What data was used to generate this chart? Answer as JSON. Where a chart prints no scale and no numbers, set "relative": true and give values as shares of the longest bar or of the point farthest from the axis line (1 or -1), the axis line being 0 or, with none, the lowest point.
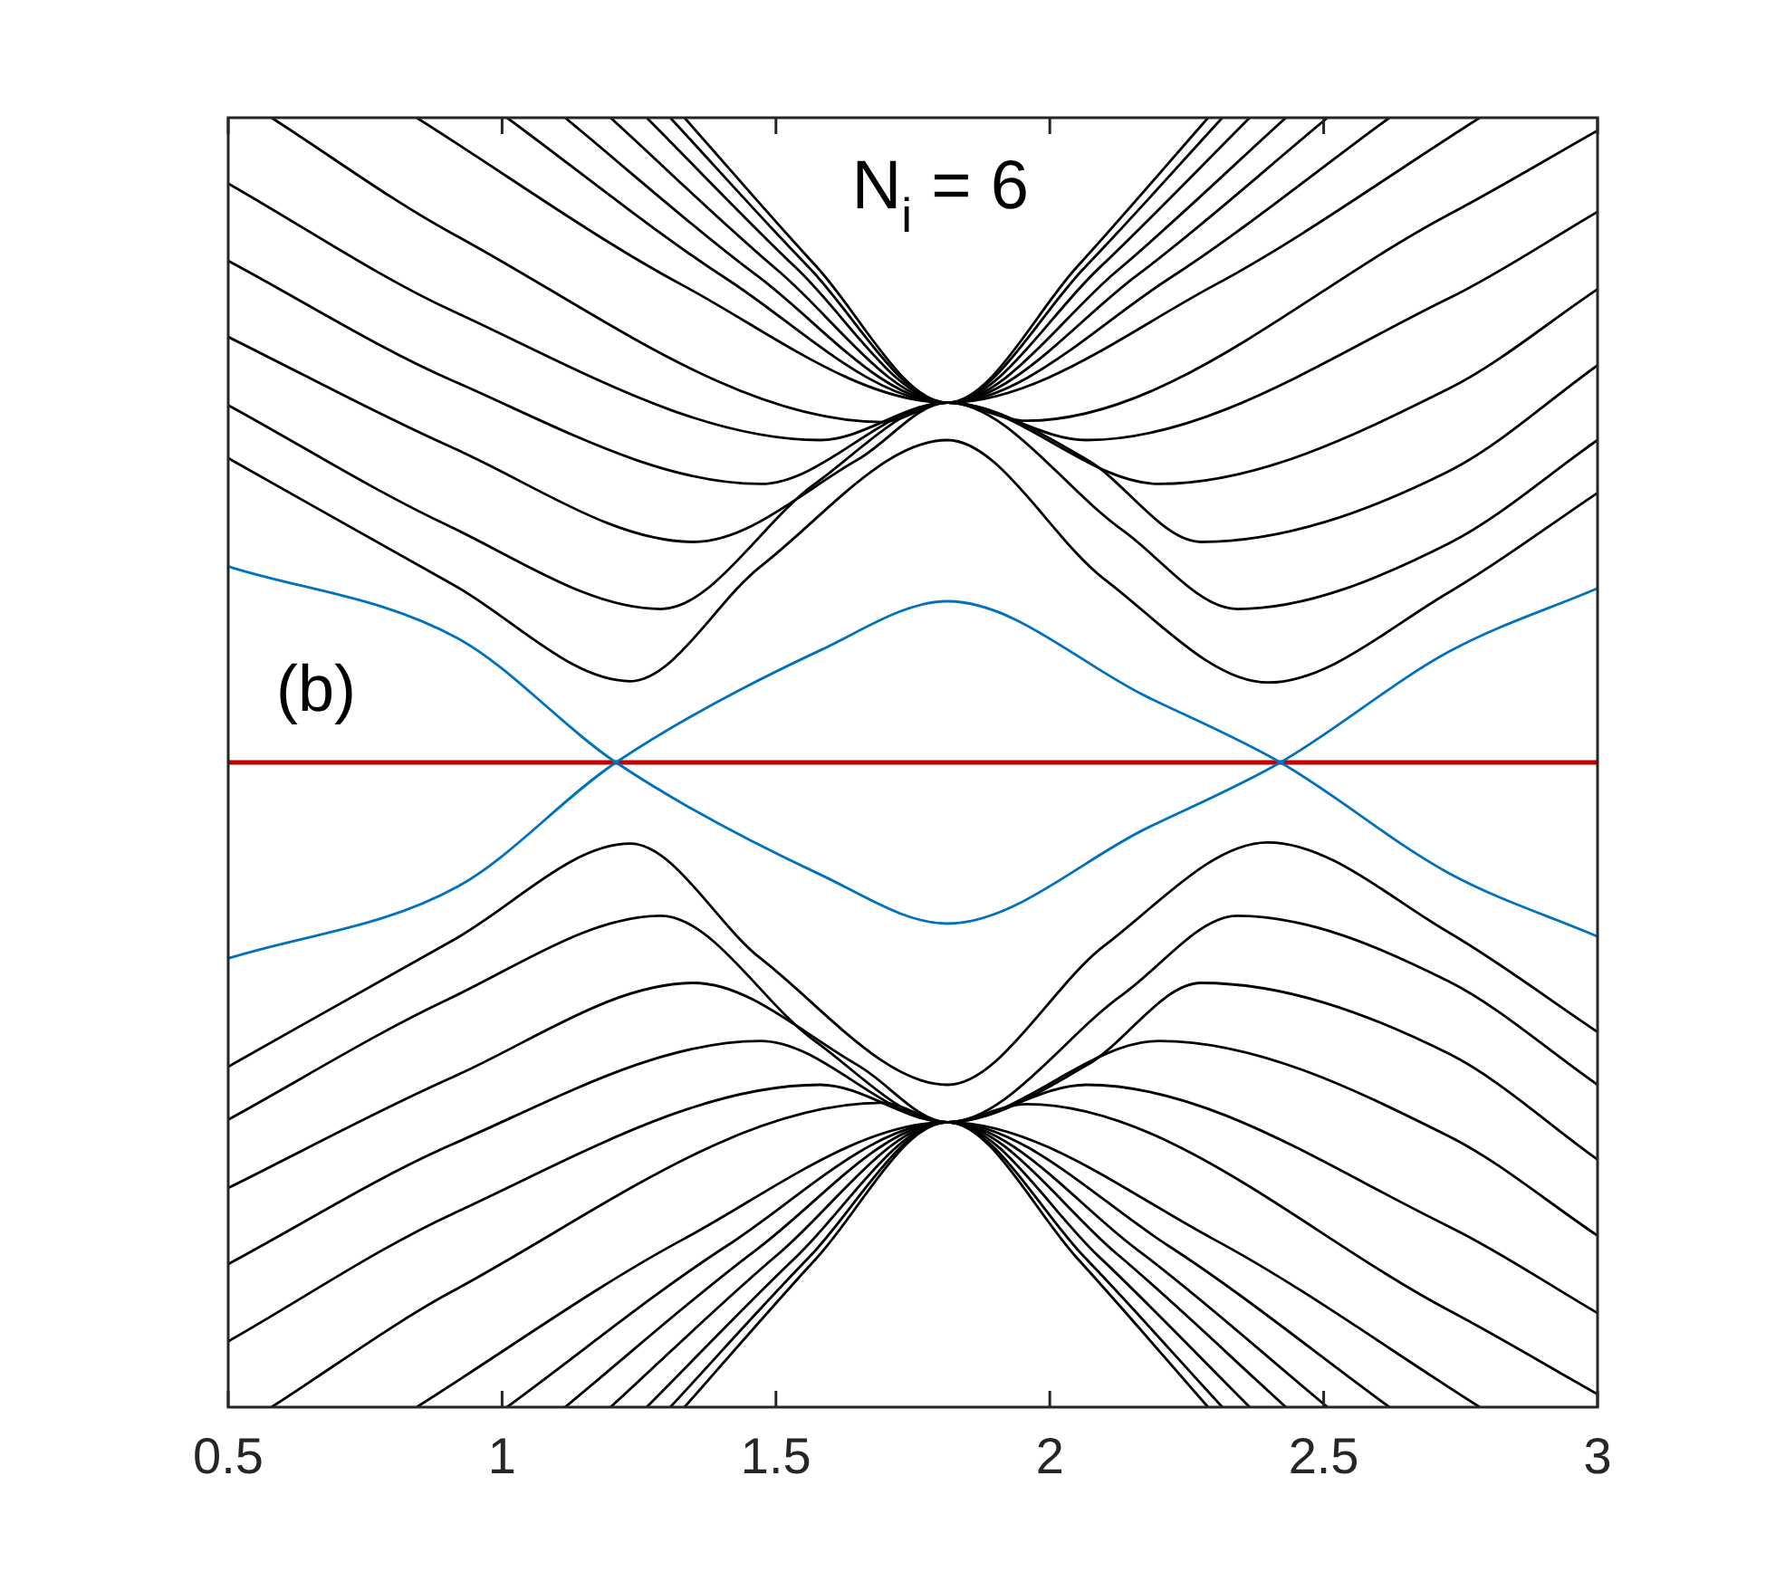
{
  "chart_data": {
    "type": "line",
    "relative": true,
    "xlim": [
      0.5,
      3
    ],
    "xticks": [
      0.5,
      1,
      1.5,
      2,
      2.5,
      3
    ],
    "grid": false,
    "legend": false,
    "marker": "none",
    "line_style": "solid",
    "annotations": [
      "N$_{i}$ = 6",
      "(b)"
    ],
    "series": [
      {
        "color": "#000000",
        "x": [
          0.5,
          0.91,
          1.234,
          1.472,
          1.813,
          2.1,
          2.398,
          2.729,
          3
        ],
        "values": [
          0.736,
          0.638,
          0.563,
          0.652,
          0.75,
          0.642,
          0.562,
          0.632,
          0.709
        ]
      },
      {
        "color": "#000000",
        "x": [
          0.5,
          0.9,
          1.29,
          1.571,
          1.813,
          2.133,
          2.342,
          2.729,
          3
        ],
        "values": [
          0.777,
          0.684,
          0.619,
          0.716,
          0.779,
          0.68,
          0.619,
          0.67,
          0.75
        ]
      },
      {
        "color": "#000000",
        "x": [
          0.5,
          0.91,
          1.35,
          1.65,
          1.813,
          2.067,
          2.276,
          2.729,
          3
        ],
        "values": [
          0.83,
          0.744,
          0.671,
          0.735,
          0.779,
          0.735,
          0.671,
          0.726,
          0.808
        ]
      },
      {
        "color": "#000000",
        "x": [
          0.5,
          0.91,
          1.472,
          1.813,
          2.2,
          2.729,
          3
        ],
        "values": [
          0.889,
          0.796,
          0.716,
          0.779,
          0.716,
          0.79,
          0.867
        ]
      },
      {
        "color": "#000000",
        "x": [
          0.5,
          0.91,
          1.581,
          1.813,
          2.067,
          2.729,
          3
        ],
        "values": [
          0.949,
          0.85,
          0.75,
          0.779,
          0.75,
          0.86,
          0.927
        ]
      },
      {
        "color": "#000000",
        "x": [
          0.579,
          0.91,
          1.694,
          1.813,
          1.958,
          2.729,
          3
        ],
        "values": [
          1,
          0.91,
          0.764,
          0.779,
          0.765,
          0.925,
          0.99
        ]
      },
      {
        "color": "#000000",
        "x": [
          0.844,
          1.33,
          1.813,
          2.3,
          2.785
        ],
        "values": [
          1,
          0.87,
          0.779,
          0.87,
          1
        ]
      },
      {
        "color": "#000000",
        "x": [
          1.009,
          1.41,
          1.813,
          2.217,
          2.62
        ],
        "values": [
          1,
          0.875,
          0.779,
          0.875,
          1
        ]
      },
      {
        "color": "#000000",
        "x": [
          1.115,
          1.464,
          1.813,
          2.16,
          2.507
        ],
        "values": [
          1,
          0.878,
          0.779,
          0.878,
          1
        ]
      },
      {
        "color": "#000000",
        "x": [
          1.198,
          1.505,
          1.813,
          2.122,
          2.431
        ],
        "values": [
          1,
          0.881,
          0.779,
          0.881,
          1
        ]
      },
      {
        "color": "#000000",
        "x": [
          1.264,
          1.538,
          1.813,
          2.089,
          2.365
        ],
        "values": [
          1,
          0.883,
          0.779,
          0.883,
          1
        ]
      },
      {
        "color": "#000000",
        "x": [
          1.307,
          1.56,
          1.813,
          2.064,
          2.315
        ],
        "values": [
          1,
          0.884,
          0.779,
          0.884,
          1
        ]
      },
      {
        "color": "#000000",
        "x": [
          1.333,
          1.573,
          1.813,
          2.051,
          2.289
        ],
        "values": [
          1,
          0.885,
          0.779,
          0.885,
          1
        ]
      },
      {
        "color": "#000000",
        "x": [
          0.5,
          0.91,
          1.234,
          1.472,
          1.813,
          2.1,
          2.398,
          2.729,
          3
        ],
        "values": [
          0.264,
          0.362,
          0.437,
          0.348,
          0.25,
          0.358,
          0.438,
          0.368,
          0.291
        ]
      },
      {
        "color": "#000000",
        "x": [
          0.5,
          0.9,
          1.29,
          1.571,
          1.813,
          2.133,
          2.342,
          2.729,
          3
        ],
        "values": [
          0.223,
          0.316,
          0.381,
          0.284,
          0.221,
          0.32,
          0.381,
          0.33,
          0.25
        ]
      },
      {
        "color": "#000000",
        "x": [
          0.5,
          0.91,
          1.35,
          1.65,
          1.813,
          2.067,
          2.276,
          2.729,
          3
        ],
        "values": [
          0.17,
          0.256,
          0.329,
          0.265,
          0.221,
          0.265,
          0.329,
          0.274,
          0.192
        ]
      },
      {
        "color": "#000000",
        "x": [
          0.5,
          0.91,
          1.472,
          1.813,
          2.2,
          2.729,
          3
        ],
        "values": [
          0.111,
          0.204,
          0.284,
          0.221,
          0.284,
          0.21,
          0.133
        ]
      },
      {
        "color": "#000000",
        "x": [
          0.5,
          0.91,
          1.581,
          1.813,
          2.067,
          2.729,
          3
        ],
        "values": [
          0.051,
          0.15,
          0.25,
          0.221,
          0.25,
          0.14,
          0.073
        ]
      },
      {
        "color": "#000000",
        "x": [
          0.579,
          0.91,
          1.694,
          1.813,
          1.958,
          2.729,
          3
        ],
        "values": [
          0,
          0.09,
          0.236,
          0.221,
          0.235,
          0.075,
          0.01
        ]
      },
      {
        "color": "#000000",
        "x": [
          0.844,
          1.33,
          1.813,
          2.3,
          2.785
        ],
        "values": [
          0,
          0.13,
          0.221,
          0.13,
          0
        ]
      },
      {
        "color": "#000000",
        "x": [
          1.009,
          1.41,
          1.813,
          2.217,
          2.62
        ],
        "values": [
          0,
          0.125,
          0.221,
          0.125,
          0
        ]
      },
      {
        "color": "#000000",
        "x": [
          1.115,
          1.464,
          1.813,
          2.16,
          2.507
        ],
        "values": [
          0,
          0.122,
          0.221,
          0.122,
          0
        ]
      },
      {
        "color": "#000000",
        "x": [
          1.198,
          1.505,
          1.813,
          2.122,
          2.431
        ],
        "values": [
          0,
          0.119,
          0.221,
          0.119,
          0
        ]
      },
      {
        "color": "#000000",
        "x": [
          1.264,
          1.538,
          1.813,
          2.089,
          2.365
        ],
        "values": [
          0,
          0.117,
          0.221,
          0.117,
          0
        ]
      },
      {
        "color": "#000000",
        "x": [
          1.307,
          1.56,
          1.813,
          2.064,
          2.315
        ],
        "values": [
          0,
          0.116,
          0.221,
          0.116,
          0
        ]
      },
      {
        "color": "#000000",
        "x": [
          1.333,
          1.573,
          1.813,
          2.051,
          2.289
        ],
        "values": [
          0,
          0.115,
          0.221,
          0.115,
          0
        ]
      },
      {
        "color": "#0072bd",
        "x": [
          0.5,
          0.92,
          1.208,
          1.581,
          1.813,
          2.177,
          2.421,
          2.729,
          3
        ],
        "values": [
          0.652,
          0.596,
          0.5,
          0.413,
          0.375,
          0.449,
          0.5,
          0.586,
          0.635
        ]
      },
      {
        "color": "#0072bd",
        "x": [
          0.5,
          0.92,
          1.208,
          1.581,
          1.813,
          2.177,
          2.421,
          2.729,
          3
        ],
        "values": [
          0.348,
          0.404,
          0.5,
          0.587,
          0.625,
          0.551,
          0.5,
          0.414,
          0.365
        ]
      },
      {
        "color": "#c00000",
        "x": [
          0.5,
          3
        ],
        "values": [
          0.5,
          0.5
        ]
      }
    ]
  }
}
